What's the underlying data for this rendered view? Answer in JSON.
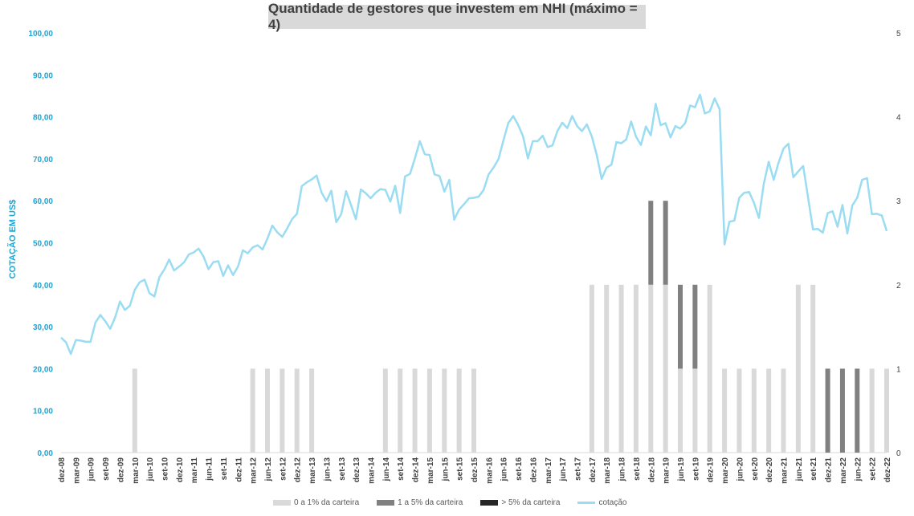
{
  "colors": {
    "bar_low": "#d9d9d9",
    "bar_mid": "#808080",
    "bar_high": "#262626",
    "line": "#9adcf2",
    "axis_left": "#1fa4d3",
    "axis_right": "#404040"
  },
  "chart_data": {
    "type": "bar+line",
    "title": "Quantidade de gestores que investem em NHI (máximo = 4)",
    "ylabel": "COTAÇÃO EM US$",
    "ylim": [
      0,
      100
    ],
    "y2lim": [
      0,
      5
    ],
    "y_ticks": [
      "0,00",
      "10,00",
      "20,00",
      "30,00",
      "40,00",
      "50,00",
      "60,00",
      "70,00",
      "80,00",
      "90,00",
      "100,00"
    ],
    "y2_ticks": [
      "0",
      "1",
      "2",
      "3",
      "4",
      "5"
    ],
    "x_tick_labels": [
      "dez-08",
      "mar-09",
      "jun-09",
      "set-09",
      "dez-09",
      "mar-10",
      "jun-10",
      "set-10",
      "dez-10",
      "mar-11",
      "jun-11",
      "set-11",
      "dez-11",
      "mar-12",
      "jun-12",
      "set-12",
      "dez-12",
      "mar-13",
      "jun-13",
      "set-13",
      "dez-13",
      "mar-14",
      "jun-14",
      "set-14",
      "dez-14",
      "mar-15",
      "jun-15",
      "set-15",
      "dez-15",
      "mar-16",
      "jun-16",
      "set-16",
      "dez-16",
      "mar-17",
      "jun-17",
      "set-17",
      "dez-17",
      "mar-18",
      "jun-18",
      "set-18",
      "dez-18",
      "mar-19",
      "jun-19",
      "set-19",
      "dez-19",
      "mar-20",
      "jun-20",
      "set-20",
      "dez-20",
      "mar-21",
      "jun-21",
      "set-21",
      "dez-21",
      "mar-22",
      "jun-22",
      "set-22",
      "dez-22"
    ],
    "legend": [
      "0 a 1% da carteira",
      "1 a 5% da carteira",
      "> 5% da carteira",
      "cotação"
    ],
    "legend_position": "bottom",
    "bar_series": [
      {
        "name": "0 a 1% da carteira",
        "values": [
          0,
          0,
          0,
          0,
          0,
          1,
          0,
          0,
          0,
          0,
          0,
          0,
          0,
          1,
          1,
          1,
          1,
          1,
          0,
          0,
          0,
          0,
          1,
          1,
          1,
          1,
          1,
          1,
          1,
          0,
          0,
          0,
          0,
          0,
          0,
          0,
          2,
          2,
          2,
          2,
          2,
          2,
          1,
          1,
          2,
          1,
          1,
          1,
          1,
          1,
          2,
          2,
          0,
          0,
          0,
          1,
          1
        ]
      },
      {
        "name": "1 a 5% da carteira",
        "values": [
          0,
          0,
          0,
          0,
          0,
          0,
          0,
          0,
          0,
          0,
          0,
          0,
          0,
          0,
          0,
          0,
          0,
          0,
          0,
          0,
          0,
          0,
          0,
          0,
          0,
          0,
          0,
          0,
          0,
          0,
          0,
          0,
          0,
          0,
          0,
          0,
          0,
          0,
          0,
          0,
          1,
          1,
          1,
          1,
          0,
          0,
          0,
          0,
          0,
          0,
          0,
          0,
          1,
          1,
          1,
          0,
          0
        ]
      },
      {
        "name": "> 5% da carteira",
        "values": [
          0,
          0,
          0,
          0,
          0,
          0,
          0,
          0,
          0,
          0,
          0,
          0,
          0,
          0,
          0,
          0,
          0,
          0,
          0,
          0,
          0,
          0,
          0,
          0,
          0,
          0,
          0,
          0,
          0,
          0,
          0,
          0,
          0,
          0,
          0,
          0,
          0,
          0,
          0,
          0,
          0,
          0,
          0,
          0,
          0,
          0,
          0,
          0,
          0,
          0,
          0,
          0,
          0,
          0,
          0,
          0,
          0
        ]
      }
    ],
    "line_series": {
      "name": "cotação",
      "values": [
        27.4,
        26.3,
        23.5,
        26.8,
        26.7,
        26.4,
        26.4,
        31,
        32.8,
        31.3,
        29.5,
        32.2,
        36,
        34,
        35,
        38.8,
        40.6,
        41.2,
        38,
        37.2,
        41.8,
        43.6,
        46,
        43.4,
        44.3,
        45.3,
        47.2,
        47.7,
        48.6,
        46.7,
        43.7,
        45.4,
        45.6,
        42.1,
        44.6,
        42.3,
        44.3,
        48.2,
        47.5,
        48.9,
        49.4,
        48.4,
        51,
        54.1,
        52.5,
        51.4,
        53.4,
        55.6,
        56.9,
        63.5,
        64.4,
        65.1,
        66,
        62,
        59.9,
        62.4,
        54.9,
        56.8,
        62.3,
        59,
        55.6,
        62.7,
        61.8,
        60.6,
        61.9,
        62.8,
        62.6,
        59.8,
        63.6,
        57.1,
        65.8,
        66.4,
        70.1,
        74.2,
        71.1,
        70.9,
        66.3,
        65.9,
        62.2,
        65,
        55.5,
        57.9,
        59.2,
        60.6,
        60.7,
        61,
        62.6,
        66.3,
        67.9,
        69.9,
        74.3,
        78.5,
        80.2,
        78.1,
        75.4,
        70.1,
        74.2,
        74.2,
        75.5,
        72.8,
        73.2,
        76.6,
        78.6,
        77.3,
        80.2,
        77.8,
        76.6,
        78.2,
        75.3,
        70.9,
        65.2,
        67.9,
        68.6,
        74,
        73.7,
        74.6,
        78.9,
        75.3,
        73.3,
        77.7,
        75.6,
        83.1,
        78,
        78.5,
        75.1,
        77.8,
        77.2,
        78.5,
        82.7,
        82.3,
        85.3,
        80.8,
        81.3,
        84.4,
        81.8,
        49.6,
        55,
        55.3,
        60.7,
        61.9,
        62.1,
        59.5,
        55.9,
        64.1,
        69.3,
        65,
        69.1,
        72.4,
        73.6,
        65.6,
        67,
        68.3,
        60.8,
        53.2,
        53.3,
        52.4,
        57.1,
        57.5,
        53.8,
        59,
        52.2,
        58.9,
        60.7,
        65,
        65.4,
        56.8,
        56.9,
        56.5,
        52.8
      ]
    }
  }
}
